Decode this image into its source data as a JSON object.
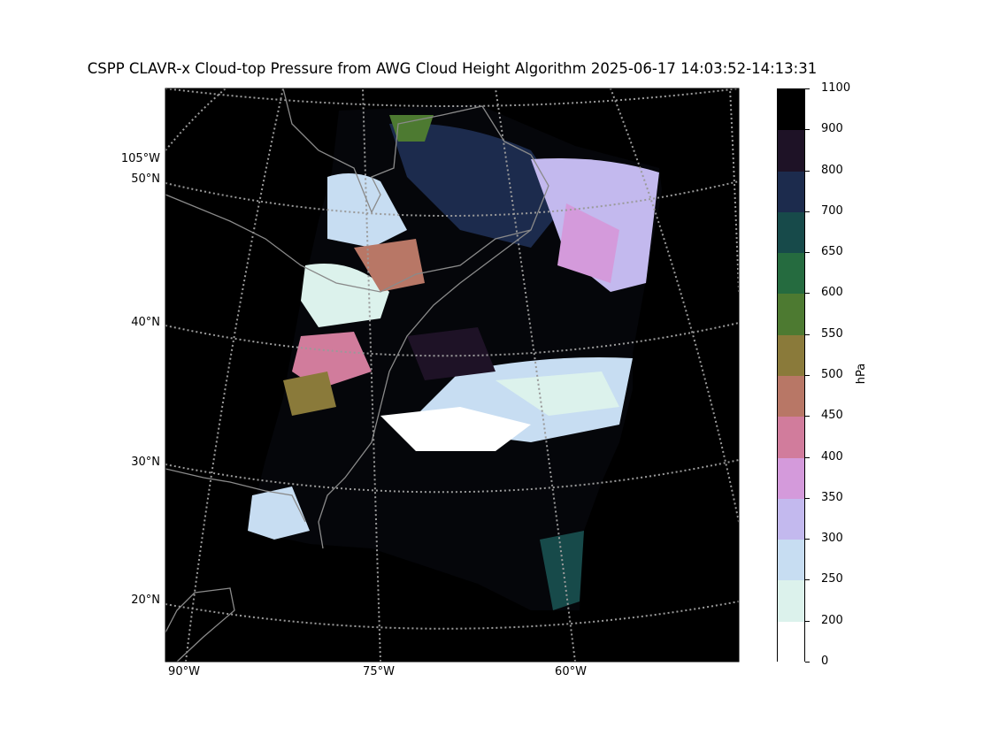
{
  "title": "CSPP CLAVR-x Cloud-top Pressure from AWG Cloud Height Algorithm 2025-06-17 14:03:52-14:13:31",
  "map": {
    "lat_labels": [
      "105°W",
      "50°N",
      "40°N",
      "30°N",
      "20°N"
    ],
    "lon_labels": [
      "90°W",
      "75°W",
      "60°W"
    ],
    "background": "#000000",
    "gridline_color": "#9a9a9a",
    "coastline_color": "#8a8a8a"
  },
  "colorbar": {
    "label": "hPa",
    "ticks": [
      "1100",
      "900",
      "800",
      "700",
      "650",
      "600",
      "550",
      "500",
      "450",
      "400",
      "350",
      "300",
      "250",
      "200",
      "0"
    ],
    "colors": [
      "#000000",
      "#1e1226",
      "#1c2b4d",
      "#174a4a",
      "#256b3f",
      "#4d7a31",
      "#8a7a3a",
      "#b87766",
      "#d17c9c",
      "#d49adb",
      "#c3b9ee",
      "#c7ddf2",
      "#dcf2ec",
      "#ffffff"
    ]
  }
}
